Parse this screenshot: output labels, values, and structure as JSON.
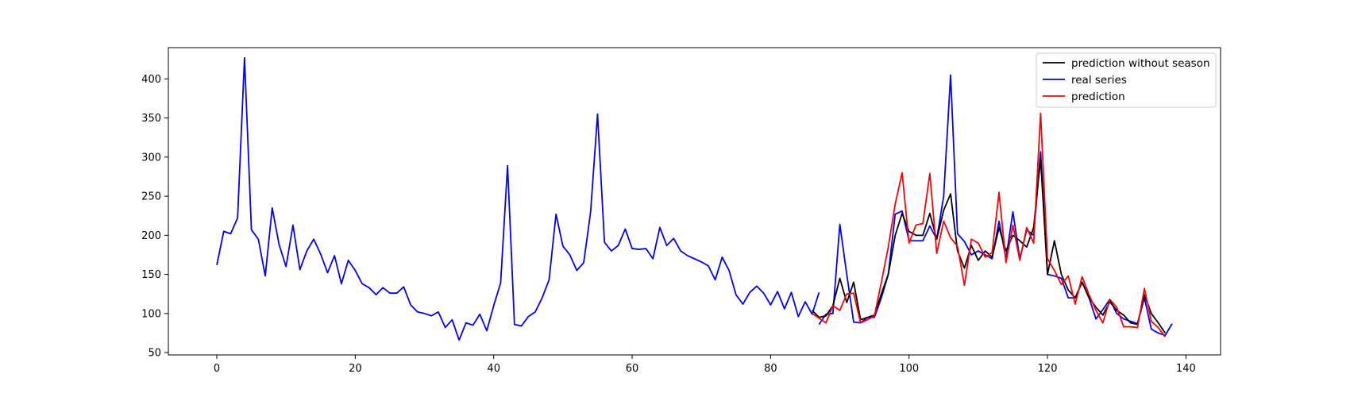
{
  "chart_data": {
    "type": "line",
    "title": "",
    "xlabel": "",
    "ylabel": "",
    "xlim": [
      -7,
      145
    ],
    "ylim": [
      47,
      440
    ],
    "xticks": [
      0,
      20,
      40,
      60,
      80,
      100,
      120,
      140
    ],
    "yticks": [
      50,
      100,
      150,
      200,
      250,
      300,
      350,
      400
    ],
    "grid": false,
    "legend_position": "top-right",
    "legend_order": [
      "prediction without season",
      "real series",
      "prediction"
    ],
    "series": [
      {
        "name": "real series",
        "color": "#0000ff",
        "x_start": 0,
        "values": [
          162,
          205,
          202,
          222,
          427,
          207,
          195,
          148,
          235,
          188,
          160,
          213,
          156,
          180,
          195,
          176,
          152,
          174,
          138,
          168,
          155,
          138,
          133,
          124,
          133,
          126,
          126,
          134,
          111,
          102,
          100,
          97,
          102,
          82,
          92,
          66,
          88,
          85,
          99,
          78,
          110,
          139,
          289,
          86,
          84,
          96,
          102,
          120,
          143,
          227,
          186,
          175,
          155,
          165,
          230,
          355,
          191,
          180,
          187,
          208,
          183,
          182,
          183,
          170,
          210,
          187,
          196,
          180,
          174,
          170,
          166,
          161,
          143,
          172,
          155,
          124,
          112,
          127,
          135,
          126,
          111,
          128,
          106,
          127,
          96,
          115,
          99,
          127,
          null,
          null,
          null,
          null,
          null,
          null,
          null,
          null,
          null,
          null,
          null,
          null,
          null,
          null,
          null,
          null,
          null,
          null,
          null,
          null,
          null,
          null,
          null,
          null,
          null,
          null,
          null,
          null,
          null,
          null,
          null,
          null,
          null,
          null,
          null,
          null,
          null,
          null,
          null,
          null,
          null,
          null,
          null,
          null,
          null,
          null,
          null,
          null,
          null,
          null
        ],
        "tail_x_start": 87,
        "tail_values": [
          86,
          99,
          100,
          214,
          150,
          89,
          88,
          95,
          95,
          120,
          150,
          227,
          231,
          193,
          193,
          193,
          212,
          195,
          250,
          405,
          202,
          192,
          175,
          180,
          175,
          170,
          218,
          170,
          230,
          170,
          207,
          200,
          307,
          150,
          148,
          145,
          120,
          120,
          140,
          120,
          93,
          105,
          118,
          100,
          93,
          90,
          87,
          120,
          80,
          75,
          72,
          87
        ]
      },
      {
        "name": "prediction without season",
        "color": "#000000",
        "x_start": 86,
        "values": [
          104,
          95,
          97,
          110,
          145,
          114,
          140,
          92,
          95,
          98,
          125,
          150,
          200,
          228,
          205,
          200,
          200,
          228,
          195,
          232,
          253,
          180,
          158,
          187,
          168,
          180,
          172,
          210,
          180,
          200,
          193,
          185,
          210,
          298,
          150,
          193,
          150,
          130,
          120,
          140,
          120,
          108,
          98,
          115,
          104,
          98,
          88,
          86,
          124,
          100,
          88,
          75
        ]
      },
      {
        "name": "prediction",
        "color": "#ff0000",
        "x_start": 86,
        "values": [
          100,
          94,
          88,
          110,
          104,
          125,
          126,
          88,
          92,
          97,
          140,
          185,
          240,
          280,
          190,
          213,
          215,
          279,
          177,
          218,
          197,
          186,
          136,
          195,
          190,
          172,
          178,
          255,
          165,
          213,
          168,
          210,
          190,
          356,
          170,
          155,
          137,
          148,
          112,
          147,
          124,
          104,
          88,
          118,
          108,
          83,
          83,
          82,
          132,
          90,
          82,
          70
        ]
      }
    ]
  }
}
